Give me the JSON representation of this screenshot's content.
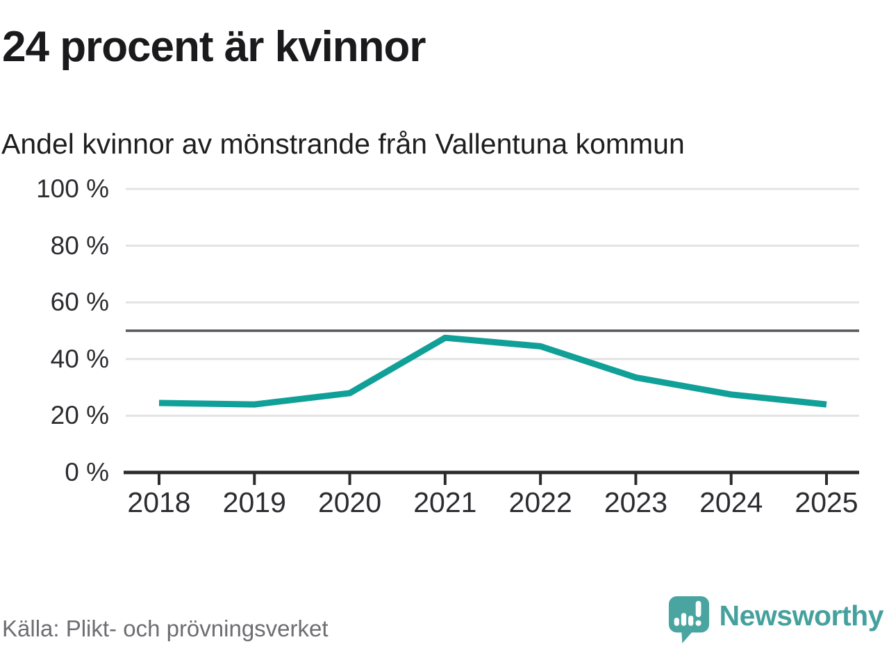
{
  "title": "24 procent är kvinnor",
  "subtitle": "Andel kvinnor av mönstrande från Vallentuna kommun",
  "source": "Källa: Plikt- och prövningsverket",
  "brand": {
    "name": "Newsworthy",
    "logo_icon": "newsworthy-speech-bubble-bar-chart-icon",
    "logo_color": "#4aa5a1"
  },
  "colors": {
    "line": "#10a098",
    "grid": "#e3e3e3",
    "reference_line": "#55575c",
    "axis": "#2b2b2e",
    "title_text": "#1a1a1c",
    "muted_text": "#6d6d72"
  },
  "chart_data": {
    "type": "line",
    "x": [
      2018,
      2019,
      2020,
      2021,
      2022,
      2023,
      2024,
      2025
    ],
    "series": [
      {
        "name": "Andel kvinnor av mönstrande",
        "values": [
          24.5,
          24,
          28,
          47.5,
          44.5,
          33.5,
          27.5,
          24
        ]
      }
    ],
    "unit": "%",
    "ylim": [
      0,
      100
    ],
    "yticks": [
      0,
      20,
      40,
      60,
      80,
      100
    ],
    "ytick_suffix": " %",
    "reference_line": 50,
    "grid": "horizontal",
    "legend": "none",
    "title": "24 procent är kvinnor",
    "xlabel": "",
    "ylabel": ""
  }
}
